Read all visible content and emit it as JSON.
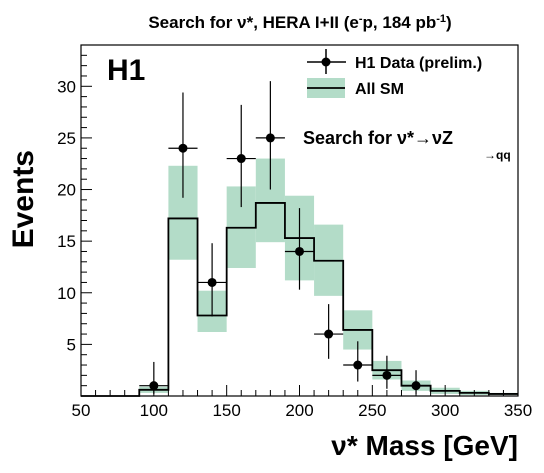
{
  "chart_data": {
    "type": "histogram",
    "title": "Search for ν*, HERA I+II (e⁻p, 184 pb⁻¹)",
    "experiment_label": "H1",
    "xlabel": "ν* Mass [GeV]",
    "ylabel": "Events",
    "xlim": [
      50,
      350
    ],
    "ylim": [
      0,
      34
    ],
    "xticks": [
      50,
      100,
      150,
      200,
      250,
      300,
      350
    ],
    "yticks": [
      5,
      10,
      15,
      20,
      25,
      30
    ],
    "annotation": "Search for ν*→νZ",
    "annotation_sub": "→qq",
    "legend": {
      "placement": "top-right",
      "entries": [
        {
          "label": "H1 Data (prelim.)",
          "style": "points"
        },
        {
          "label": "All SM",
          "style": "line-with-band"
        }
      ]
    },
    "bins": [
      50,
      70,
      90,
      110,
      130,
      150,
      170,
      190,
      210,
      230,
      250,
      270,
      290,
      310,
      330,
      350
    ],
    "sm": {
      "values": [
        0,
        0,
        0.6,
        17.2,
        7.8,
        16.3,
        18.7,
        15.3,
        13.1,
        6.4,
        2.5,
        1.0,
        0.5,
        0.3,
        0.2
      ],
      "band_low": [
        0,
        0,
        0.3,
        13.2,
        6.2,
        12.4,
        14.9,
        11.2,
        9.7,
        4.5,
        1.6,
        0.5,
        0.2,
        0.1,
        0.1
      ],
      "band_high": [
        0,
        0,
        0.9,
        22.3,
        10.2,
        20.3,
        23.0,
        19.4,
        16.6,
        8.3,
        3.4,
        1.5,
        0.8,
        0.5,
        0.3
      ],
      "color": "#000000",
      "band_color": "#b3dcc8"
    },
    "data": {
      "x": [
        100,
        120,
        140,
        160,
        180,
        200,
        220,
        240,
        260,
        280
      ],
      "y": [
        1,
        24,
        11,
        23,
        25,
        14,
        6,
        3,
        2,
        1
      ],
      "err_low": [
        0.8,
        4.8,
        3.3,
        4.7,
        5.0,
        3.7,
        2.4,
        1.6,
        1.3,
        0.8
      ],
      "err_high": [
        2.3,
        5.4,
        3.8,
        5.2,
        5.5,
        4.2,
        2.9,
        2.3,
        1.9,
        1.5
      ],
      "color": "#000000"
    }
  }
}
